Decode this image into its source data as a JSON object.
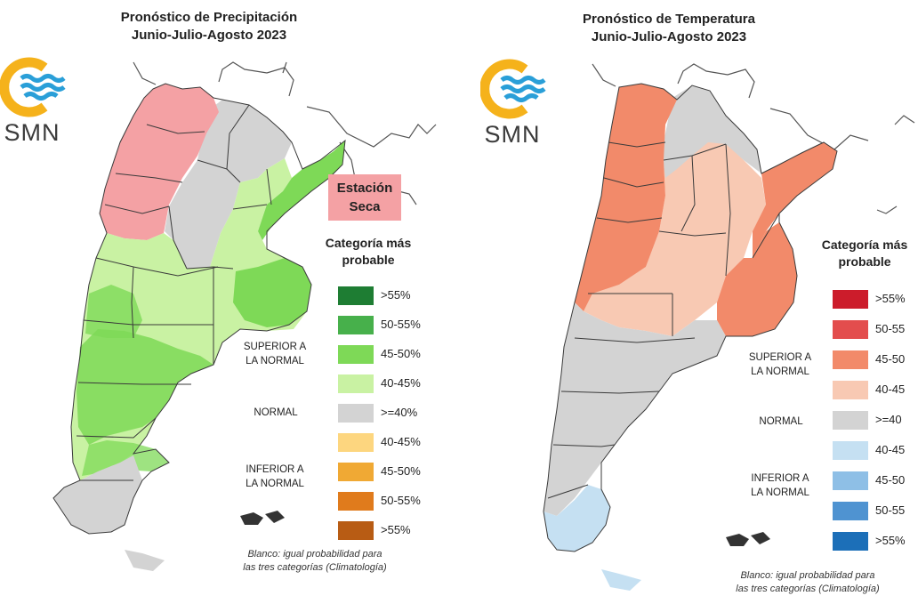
{
  "precipitation": {
    "title_line1": "Pronóstico de Precipitación",
    "title_line2": "Junio-Julio-Agosto 2023",
    "logo_text": "SMN",
    "badge_line1": "Estación",
    "badge_line2": "Seca",
    "legend_title_line1": "Categoría más",
    "legend_title_line2": "probable",
    "group_superior_line1": "SUPERIOR A",
    "group_superior_line2": "LA NORMAL",
    "group_normal": "NORMAL",
    "group_inferior_line1": "INFERIOR A",
    "group_inferior_line2": "LA NORMAL",
    "legend": [
      {
        "label": ">55%",
        "color": "#1e7d33"
      },
      {
        "label": "50-55%",
        "color": "#47b04b"
      },
      {
        "label": "45-50%",
        "color": "#7ed957"
      },
      {
        "label": "40-45%",
        "color": "#c9f2a3"
      },
      {
        "label": ">=40%",
        "color": "#d3d3d3"
      },
      {
        "label": "40-45%",
        "color": "#fdd67f"
      },
      {
        "label": "45-50%",
        "color": "#f0a934"
      },
      {
        "label": "50-55%",
        "color": "#e07b1c"
      },
      {
        "label": ">55%",
        "color": "#b85c14"
      }
    ],
    "note_line1": "Blanco: igual probabilidad para",
    "note_line2": "las tres categorías (Climatología)"
  },
  "temperature": {
    "title_line1": "Pronóstico de Temperatura",
    "title_line2": "Junio-Julio-Agosto 2023",
    "logo_text": "SMN",
    "legend_title_line1": "Categoría más",
    "legend_title_line2": "probable",
    "group_superior_line1": "SUPERIOR A",
    "group_superior_line2": "LA NORMAL",
    "group_normal": "NORMAL",
    "group_inferior_line1": "INFERIOR A",
    "group_inferior_line2": "LA NORMAL",
    "legend": [
      {
        "label": ">55%",
        "color": "#cc1c2b"
      },
      {
        "label": "50-55",
        "color": "#e34d4d"
      },
      {
        "label": "45-50",
        "color": "#f28a6a"
      },
      {
        "label": "40-45",
        "color": "#f8c9b3"
      },
      {
        "label": ">=40",
        "color": "#d3d3d3"
      },
      {
        "label": "40-45",
        "color": "#c5e0f2"
      },
      {
        "label": "45-50",
        "color": "#8ebfe6"
      },
      {
        "label": "50-55",
        "color": "#4f93d1"
      },
      {
        "label": ">55%",
        "color": "#1c6fb8"
      }
    ],
    "note_line1": "Blanco: igual probabilidad para",
    "note_line2": "las tres categorías (Climatología)"
  },
  "colors": {
    "logo_ring": "#f5b21b",
    "logo_waves": "#2a9fd8"
  }
}
